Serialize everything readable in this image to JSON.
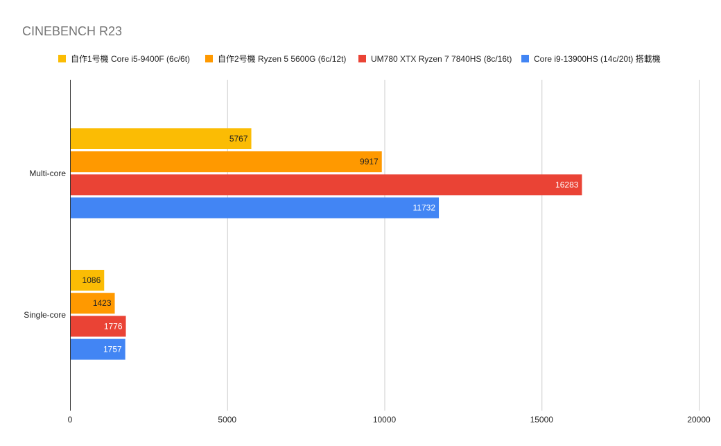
{
  "chart_data": {
    "type": "bar",
    "orientation": "horizontal",
    "title": "CINEBENCH R23",
    "xlabel": "",
    "ylabel": "",
    "categories": [
      "Multi-core",
      "Single-core"
    ],
    "xlim": [
      0,
      20000
    ],
    "x_ticks": [
      0,
      5000,
      10000,
      15000,
      20000
    ],
    "grid": true,
    "legend_position": "top",
    "series": [
      {
        "name": "自作1号機 Core i5-9400F (6c/6t)",
        "color": "#fbbc04",
        "label_color": "#222222",
        "values": [
          5767,
          1086
        ]
      },
      {
        "name": "自作2号機 Ryzen 5 5600G (6c/12t)",
        "color": "#ff9900",
        "label_color": "#222222",
        "values": [
          9917,
          1423
        ]
      },
      {
        "name": "UM780 XTX Ryzen 7 7840HS (8c/16t)",
        "color": "#ea4335",
        "label_color": "#ffffff",
        "values": [
          16283,
          1776
        ]
      },
      {
        "name": "Core i9-13900HS (14c/20t) 搭載機",
        "color": "#4285f4",
        "label_color": "#ffffff",
        "values": [
          11732,
          1757
        ]
      }
    ]
  }
}
